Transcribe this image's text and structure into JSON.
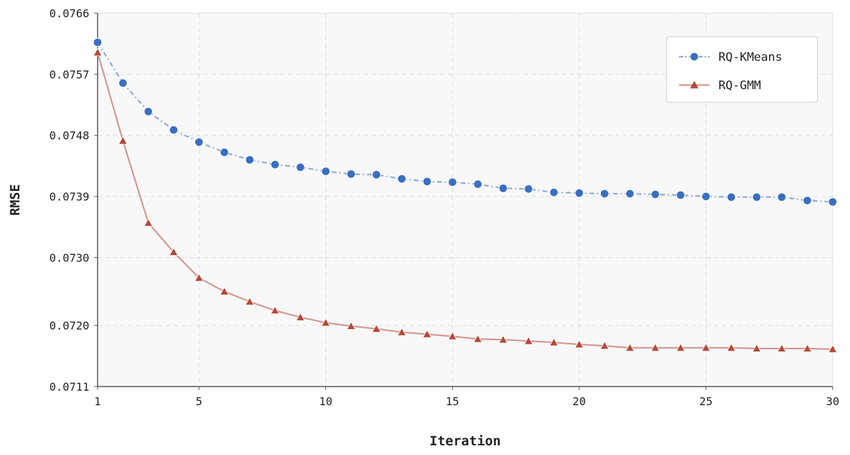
{
  "colors": {
    "kmeans_marker": "#3a6fbf",
    "kmeans_line": "#8eaad6",
    "gmm_marker": "#b5483a",
    "gmm_line": "#d4978d",
    "plot_background": "#f8f8f9",
    "grid": "#dcdcdc",
    "axis": "#555555"
  },
  "chart_data": {
    "type": "line",
    "xlabel": "Iteration",
    "ylabel": "RMSE",
    "xlim": [
      1,
      30
    ],
    "ylim": [
      0.0711,
      0.0766
    ],
    "xticks": [
      1,
      5,
      10,
      15,
      20,
      25,
      30
    ],
    "xtick_labels": [
      "1",
      "5",
      "10",
      "15",
      "20",
      "25",
      "30"
    ],
    "yticks": [
      0.0711,
      0.072,
      0.073,
      0.0739,
      0.0748,
      0.0757,
      0.0766
    ],
    "ytick_labels": [
      "0.0711",
      "0.0720",
      "0.0730",
      "0.0739",
      "0.0748",
      "0.0757",
      "0.0766"
    ],
    "grid": true,
    "legend_position": "top-right",
    "x": [
      1,
      2,
      3,
      4,
      5,
      6,
      7,
      8,
      9,
      10,
      11,
      12,
      13,
      14,
      15,
      16,
      17,
      18,
      19,
      20,
      21,
      22,
      23,
      24,
      25,
      26,
      27,
      27.99,
      29,
      30
    ],
    "series": [
      {
        "name": "RQ-KMeans",
        "marker": "circle",
        "line_style": "dash-dot",
        "values": [
          0.07617,
          0.07557,
          0.07515,
          0.07488,
          0.0747,
          0.07455,
          0.07444,
          0.07437,
          0.07433,
          0.07427,
          0.07423,
          0.07422,
          0.07416,
          0.07412,
          0.07411,
          0.07408,
          0.07402,
          0.07401,
          0.07396,
          0.07395,
          0.07394,
          0.07394,
          0.07393,
          0.07392,
          0.0739,
          0.07389,
          0.07389,
          0.07389,
          0.07384,
          0.07382
        ]
      },
      {
        "name": "RQ-GMM",
        "marker": "triangle",
        "line_style": "solid",
        "values": [
          0.07602,
          0.07472,
          0.07351,
          0.07308,
          0.0727,
          0.0725,
          0.07235,
          0.07222,
          0.07212,
          0.07204,
          0.07199,
          0.07195,
          0.0719,
          0.07187,
          0.07184,
          0.0718,
          0.07179,
          0.07177,
          0.07175,
          0.07172,
          0.0717,
          0.07167,
          0.07167,
          0.07167,
          0.07167,
          0.07167,
          0.07166,
          0.07166,
          0.07166,
          0.07165
        ]
      }
    ]
  }
}
